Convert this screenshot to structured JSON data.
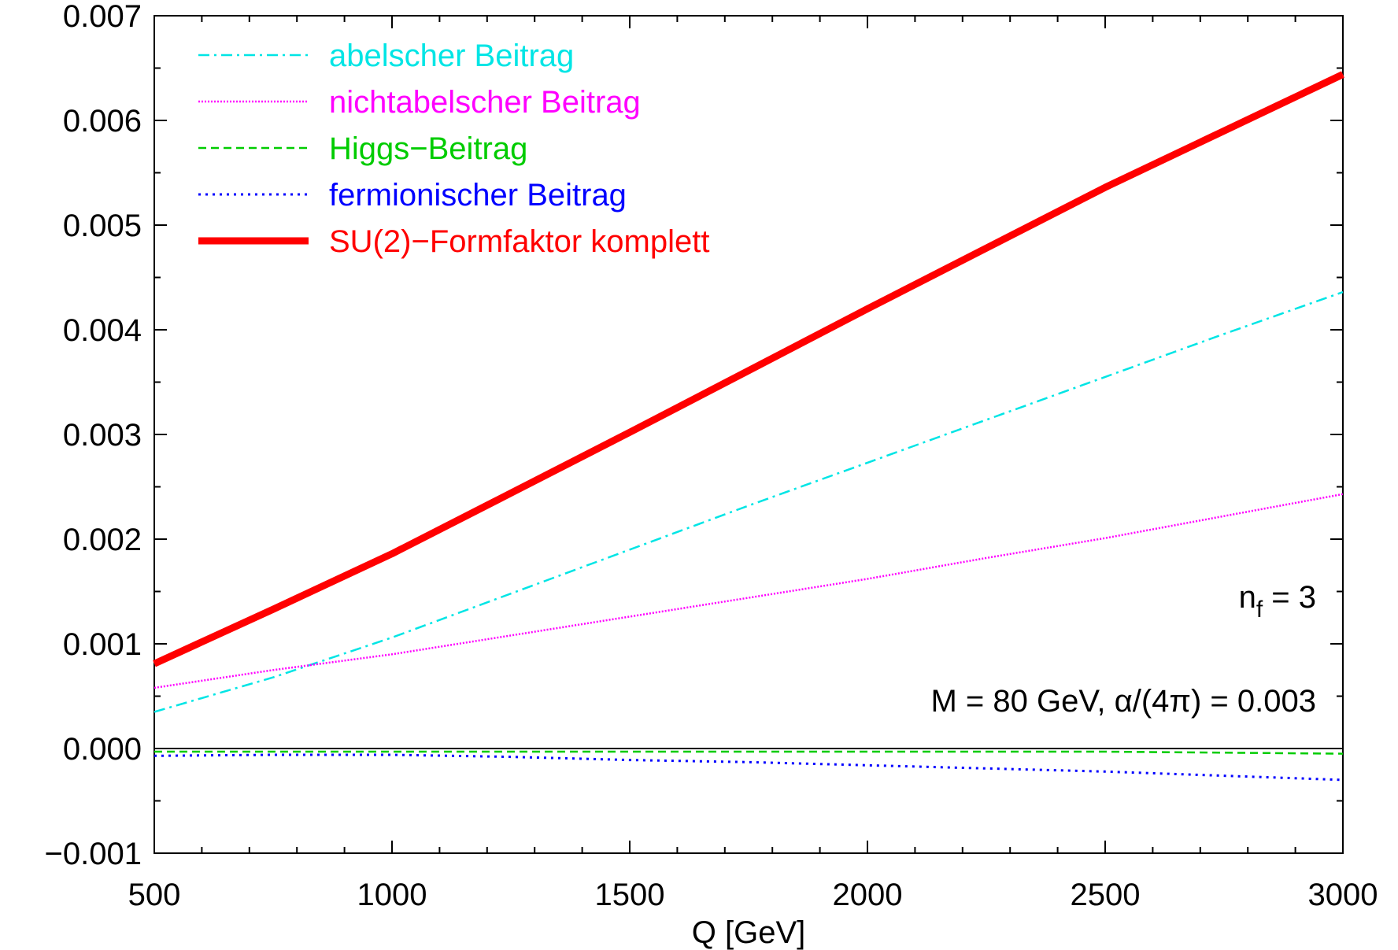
{
  "chart_data": {
    "type": "line",
    "title": "",
    "xlabel": "Q [GeV]",
    "ylabel": "",
    "xlim": [
      500,
      3000
    ],
    "ylim": [
      -0.001,
      0.007
    ],
    "x_ticks": [
      500,
      1000,
      1500,
      2000,
      2500,
      3000
    ],
    "x_tick_labels": [
      "500",
      "1000",
      "1500",
      "2000",
      "2500",
      "3000"
    ],
    "y_ticks": [
      -0.001,
      0.0,
      0.001,
      0.002,
      0.003,
      0.004,
      0.005,
      0.006,
      0.007
    ],
    "y_tick_labels": [
      "−0.001",
      "0.000",
      "0.001",
      "0.002",
      "0.003",
      "0.004",
      "0.005",
      "0.006",
      "0.007"
    ],
    "grid": false,
    "legend_position": "top-left",
    "x": [
      500,
      750,
      1000,
      1250,
      1500,
      1750,
      2000,
      2250,
      2500,
      2750,
      3000
    ],
    "series": [
      {
        "name": "abelscher Beitrag",
        "color": "#00e5e5",
        "dash": "dash-dot",
        "values": [
          0.00035,
          0.00068,
          0.00106,
          0.00148,
          0.0019,
          0.00232,
          0.00273,
          0.00314,
          0.00355,
          0.00396,
          0.00436
        ]
      },
      {
        "name": "nichtabelscher Beitrag",
        "color": "#ff00ff",
        "dash": "dotted-fine",
        "values": [
          0.00058,
          0.00075,
          0.0009,
          0.00108,
          0.00126,
          0.00144,
          0.00162,
          0.00182,
          0.00201,
          0.00222,
          0.00243
        ]
      },
      {
        "name": "Higgs−Beitrag",
        "color": "#00cc00",
        "dash": "dashed",
        "values": [
          -3e-05,
          -3e-05,
          -3e-05,
          -3e-05,
          -3e-05,
          -3e-05,
          -3e-05,
          -3e-05,
          -3e-05,
          -4e-05,
          -5e-05
        ]
      },
      {
        "name": "fermionischer Beitrag",
        "color": "#0000ff",
        "dash": "dotted",
        "values": [
          -7e-05,
          -6e-05,
          -6e-05,
          -8e-05,
          -0.00011,
          -0.00013,
          -0.00016,
          -0.00019,
          -0.00022,
          -0.00026,
          -0.0003
        ]
      },
      {
        "name": "SU(2)−Formfaktor komplett",
        "color": "#ff0000",
        "dash": "solid-thick",
        "values": [
          0.00081,
          0.00133,
          0.00186,
          0.00244,
          0.00302,
          0.00361,
          0.0042,
          0.00478,
          0.00536,
          0.0059,
          0.00644
        ]
      }
    ],
    "annotations": {
      "nf_main": "n",
      "nf_sub": "f",
      "nf_rest": " = 3",
      "params": "M = 80 GeV, α/(4π) = 0.003"
    }
  }
}
